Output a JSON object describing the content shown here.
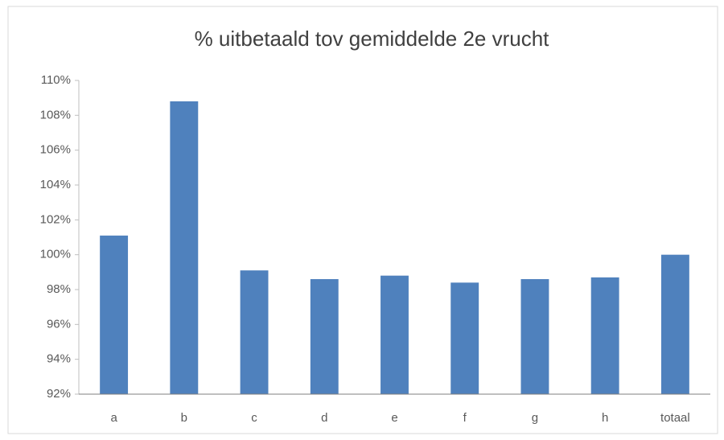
{
  "chart_data": {
    "type": "bar",
    "title": "% uitbetaald tov gemiddelde 2e vrucht",
    "categories": [
      "a",
      "b",
      "c",
      "d",
      "e",
      "f",
      "g",
      "h",
      "totaal"
    ],
    "values": [
      101.1,
      108.8,
      99.1,
      98.6,
      98.8,
      98.4,
      98.6,
      98.7,
      100.0
    ],
    "color": "#4f81bd",
    "ylim": [
      92,
      110
    ],
    "yticks": [
      {
        "value": 92,
        "label": "92%"
      },
      {
        "value": 94,
        "label": "94%"
      },
      {
        "value": 96,
        "label": "96%"
      },
      {
        "value": 98,
        "label": "98%"
      },
      {
        "value": 100,
        "label": "100%"
      },
      {
        "value": 102,
        "label": "102%"
      },
      {
        "value": 104,
        "label": "104%"
      },
      {
        "value": 106,
        "label": "106%"
      },
      {
        "value": 108,
        "label": "108%"
      },
      {
        "value": 110,
        "label": "110%"
      }
    ],
    "grid": false
  }
}
